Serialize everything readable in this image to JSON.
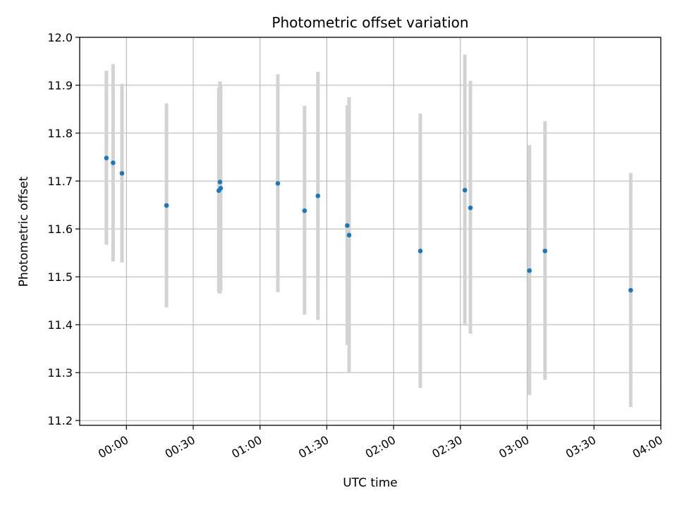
{
  "chart_data": {
    "type": "scatter",
    "title": "Photometric offset variation",
    "xlabel": "UTC time",
    "ylabel": "Photometric offset",
    "xlim": [
      "2023-01-01T23:39:00",
      "2023-01-02T04:00:00"
    ],
    "ylim": [
      11.19,
      12.0
    ],
    "grid": true,
    "x_ticks": [
      "00:00",
      "00:30",
      "01:00",
      "01:30",
      "02:00",
      "02:30",
      "03:00",
      "03:30",
      "04:00"
    ],
    "x_tick_times": [
      "2023-01-02T00:00:00",
      "2023-01-02T00:30:00",
      "2023-01-02T01:00:00",
      "2023-01-02T01:30:00",
      "2023-01-02T02:00:00",
      "2023-01-02T02:30:00",
      "2023-01-02T03:00:00",
      "2023-01-02T03:30:00",
      "2023-01-02T04:00:00"
    ],
    "y_ticks": [
      11.2,
      11.3,
      11.4,
      11.5,
      11.6,
      11.7,
      11.8,
      11.9,
      12.0
    ],
    "y_tick_labels": [
      "11.2",
      "11.3",
      "11.4",
      "11.5",
      "11.6",
      "11.7",
      "11.8",
      "11.9",
      "12.0"
    ],
    "colors": {
      "points": "#1f77b4",
      "error_bars": "#d3d3d3",
      "grid": "#b0b0b0"
    },
    "points": [
      {
        "t": "2023-01-01T23:51:00",
        "y": 11.748,
        "lo": 11.567,
        "hi": 11.93
      },
      {
        "t": "2023-01-01T23:54:00",
        "y": 11.738,
        "lo": 11.532,
        "hi": 11.944
      },
      {
        "t": "2023-01-01T23:58:00",
        "y": 11.716,
        "lo": 11.53,
        "hi": 11.903
      },
      {
        "t": "2023-01-02T00:18:00",
        "y": 11.649,
        "lo": 11.436,
        "hi": 11.862
      },
      {
        "t": "2023-01-02T00:41:30",
        "y": 11.68,
        "lo": 11.467,
        "hi": 11.895
      },
      {
        "t": "2023-01-02T00:42:00",
        "y": 11.698,
        "lo": 11.465,
        "hi": 11.908
      },
      {
        "t": "2023-01-02T00:42:20",
        "y": 11.685,
        "lo": 11.47,
        "hi": 11.9
      },
      {
        "t": "2023-01-02T01:08:00",
        "y": 11.695,
        "lo": 11.468,
        "hi": 11.923
      },
      {
        "t": "2023-01-02T01:20:00",
        "y": 11.638,
        "lo": 11.421,
        "hi": 11.857
      },
      {
        "t": "2023-01-02T01:26:00",
        "y": 11.669,
        "lo": 11.41,
        "hi": 11.928
      },
      {
        "t": "2023-01-02T01:39:10",
        "y": 11.607,
        "lo": 11.358,
        "hi": 11.858
      },
      {
        "t": "2023-01-02T01:40:00",
        "y": 11.587,
        "lo": 11.3,
        "hi": 11.875
      },
      {
        "t": "2023-01-02T02:12:00",
        "y": 11.554,
        "lo": 11.268,
        "hi": 11.841
      },
      {
        "t": "2023-01-02T02:32:00",
        "y": 11.681,
        "lo": 11.398,
        "hi": 11.964
      },
      {
        "t": "2023-01-02T02:34:30",
        "y": 11.644,
        "lo": 11.381,
        "hi": 11.909
      },
      {
        "t": "2023-01-02T03:01:00",
        "y": 11.513,
        "lo": 11.253,
        "hi": 11.775
      },
      {
        "t": "2023-01-02T03:08:00",
        "y": 11.554,
        "lo": 11.285,
        "hi": 11.825
      },
      {
        "t": "2023-01-02T03:46:30",
        "y": 11.472,
        "lo": 11.228,
        "hi": 11.717
      }
    ]
  }
}
